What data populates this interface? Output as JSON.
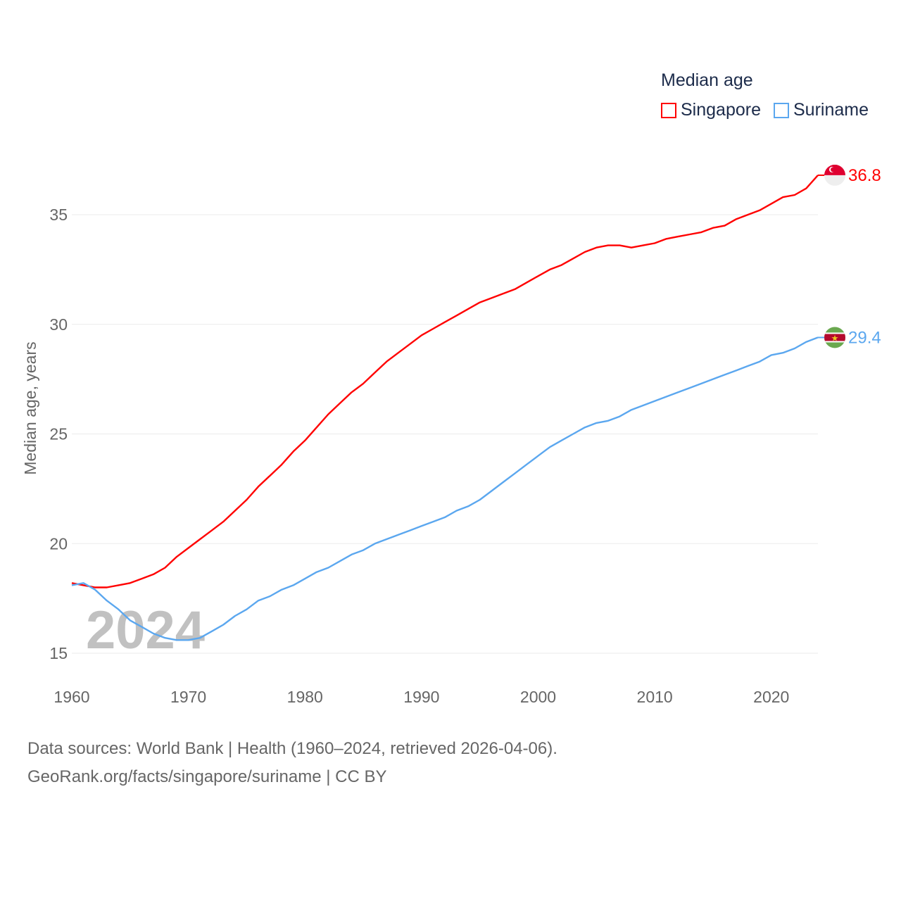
{
  "chart_data": {
    "type": "line",
    "title": "Median age",
    "ylabel": "Median age, years",
    "xlabel": "",
    "xlim": [
      1960,
      2024
    ],
    "ylim": [
      15,
      37
    ],
    "yticks": [
      15,
      20,
      25,
      30,
      35
    ],
    "xticks": [
      1960,
      1970,
      1980,
      1990,
      2000,
      2010,
      2020
    ],
    "grid": true,
    "legend_position": "top-right",
    "year_label": "2024",
    "x": [
      1960,
      1961,
      1962,
      1963,
      1964,
      1965,
      1966,
      1967,
      1968,
      1969,
      1970,
      1971,
      1972,
      1973,
      1974,
      1975,
      1976,
      1977,
      1978,
      1979,
      1980,
      1981,
      1982,
      1983,
      1984,
      1985,
      1986,
      1987,
      1988,
      1989,
      1990,
      1991,
      1992,
      1993,
      1994,
      1995,
      1996,
      1997,
      1998,
      1999,
      2000,
      2001,
      2002,
      2003,
      2004,
      2005,
      2006,
      2007,
      2008,
      2009,
      2010,
      2011,
      2012,
      2013,
      2014,
      2015,
      2016,
      2017,
      2018,
      2019,
      2020,
      2021,
      2022,
      2023,
      2024
    ],
    "series": [
      {
        "name": "Singapore",
        "color": "#ff0000",
        "end_label": "36.8",
        "flag": "singapore-flag",
        "values": [
          18.2,
          18.1,
          18.0,
          18.0,
          18.1,
          18.2,
          18.4,
          18.6,
          18.9,
          19.4,
          19.8,
          20.2,
          20.6,
          21.0,
          21.5,
          22.0,
          22.6,
          23.1,
          23.6,
          24.2,
          24.7,
          25.3,
          25.9,
          26.4,
          26.9,
          27.3,
          27.8,
          28.3,
          28.7,
          29.1,
          29.5,
          29.8,
          30.1,
          30.4,
          30.7,
          31.0,
          31.2,
          31.4,
          31.6,
          31.9,
          32.2,
          32.5,
          32.7,
          33.0,
          33.3,
          33.5,
          33.6,
          33.6,
          33.5,
          33.6,
          33.7,
          33.9,
          34.0,
          34.1,
          34.2,
          34.4,
          34.5,
          34.8,
          35.0,
          35.2,
          35.5,
          35.8,
          35.9,
          36.2,
          36.8
        ]
      },
      {
        "name": "Suriname",
        "color": "#5ba7ef",
        "end_label": "29.4",
        "flag": "suriname-flag",
        "values": [
          18.1,
          18.2,
          17.9,
          17.4,
          17.0,
          16.5,
          16.2,
          15.9,
          15.7,
          15.6,
          15.6,
          15.7,
          16.0,
          16.3,
          16.7,
          17.0,
          17.4,
          17.6,
          17.9,
          18.1,
          18.4,
          18.7,
          18.9,
          19.2,
          19.5,
          19.7,
          20.0,
          20.2,
          20.4,
          20.6,
          20.8,
          21.0,
          21.2,
          21.5,
          21.7,
          22.0,
          22.4,
          22.8,
          23.2,
          23.6,
          24.0,
          24.4,
          24.7,
          25.0,
          25.3,
          25.5,
          25.6,
          25.8,
          26.1,
          26.3,
          26.5,
          26.7,
          26.9,
          27.1,
          27.3,
          27.5,
          27.7,
          27.9,
          28.1,
          28.3,
          28.6,
          28.7,
          28.9,
          29.2,
          29.4
        ]
      }
    ]
  },
  "footer": {
    "line1": "Data sources: World Bank | Health (1960–2024, retrieved 2026-04-06).",
    "line2": "GeoRank.org/facts/singapore/suriname | CC BY"
  }
}
